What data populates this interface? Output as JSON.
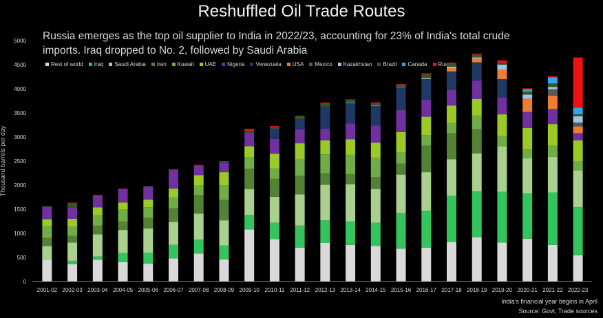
{
  "chart_data": {
    "type": "bar",
    "stacked": true,
    "title": "Reshuffled Oil Trade Routes",
    "subtitle": "Russia emerges as the top oil supplier to India in 2022/23, accounting for 23% of India's total crude imports.  Iraq dropped to  No. 2, followed by Saudi Arabia",
    "xlabel": "",
    "ylabel": "Thousand barrels per day",
    "ylim": [
      0,
      5000
    ],
    "yticks": [
      0,
      500,
      1000,
      1500,
      2000,
      2500,
      3000,
      3500,
      4000,
      4500,
      5000
    ],
    "grid": false,
    "legend_position": "top",
    "categories": [
      "2001-02",
      "2002-03",
      "2003-04",
      "2004-05",
      "2005-06",
      "2006-07",
      "2007-08",
      "2008-09",
      "2009-10",
      "2010-11",
      "2011-12",
      "2012-13",
      "2013-14",
      "2014-15",
      "2015-16",
      "2016-17",
      "2017-18",
      "2018-19",
      "2019-20",
      "2020-21",
      "2021-22",
      "2022-23"
    ],
    "series": [
      {
        "name": "Rest of world",
        "color": "#d9d9d9",
        "values": [
          460,
          360,
          450,
          400,
          370,
          480,
          580,
          460,
          1080,
          880,
          700,
          800,
          760,
          740,
          680,
          700,
          820,
          920,
          810,
          890,
          760,
          545
        ]
      },
      {
        "name": "Iraq",
        "color": "#33c45e",
        "values": [
          0,
          70,
          70,
          190,
          230,
          280,
          290,
          290,
          300,
          340,
          460,
          470,
          490,
          480,
          740,
          770,
          960,
          950,
          1050,
          940,
          1090,
          995
        ]
      },
      {
        "name": "Saudi Arabia",
        "color": "#a9d08e",
        "values": [
          275,
          380,
          460,
          480,
          500,
          480,
          540,
          520,
          540,
          540,
          650,
          740,
          770,
          700,
          800,
          800,
          760,
          790,
          940,
          730,
          740,
          760
        ]
      },
      {
        "name": "Iran",
        "color": "#548235",
        "values": [
          170,
          140,
          180,
          180,
          220,
          280,
          380,
          430,
          420,
          370,
          380,
          240,
          210,
          250,
          230,
          550,
          540,
          500,
          0,
          0,
          0,
          0
        ]
      },
      {
        "name": "Kuwait",
        "color": "#70ad47",
        "values": [
          240,
          190,
          220,
          240,
          220,
          230,
          200,
          300,
          240,
          220,
          360,
          390,
          400,
          400,
          230,
          220,
          210,
          280,
          220,
          180,
          230,
          200
        ]
      },
      {
        "name": "UAE",
        "color": "#9bc925",
        "values": [
          150,
          160,
          160,
          150,
          160,
          180,
          220,
          270,
          230,
          300,
          320,
          290,
          320,
          310,
          420,
          380,
          360,
          350,
          450,
          450,
          450,
          430
        ]
      },
      {
        "name": "Nigeria",
        "color": "#7030a0",
        "values": [
          240,
          230,
          240,
          280,
          270,
          390,
          200,
          200,
          280,
          310,
          290,
          240,
          330,
          360,
          460,
          350,
          330,
          380,
          350,
          330,
          310,
          150
        ]
      },
      {
        "name": "Venezuela",
        "color": "#203864",
        "values": [
          0,
          0,
          0,
          0,
          0,
          0,
          0,
          20,
          0,
          210,
          210,
          460,
          420,
          410,
          470,
          430,
          380,
          380,
          380,
          0,
          0,
          0
        ]
      },
      {
        "name": "USA",
        "color": "#ed7d31",
        "values": [
          0,
          0,
          0,
          0,
          0,
          0,
          0,
          0,
          0,
          0,
          0,
          0,
          0,
          0,
          0,
          0,
          70,
          80,
          200,
          280,
          280,
          140
        ]
      },
      {
        "name": "Mexico",
        "color": "#595959",
        "values": [
          25,
          0,
          0,
          0,
          0,
          0,
          0,
          0,
          0,
          0,
          0,
          0,
          0,
          0,
          0,
          0,
          0,
          0,
          0,
          0,
          130,
          80
        ]
      },
      {
        "name": "Kazakhstan",
        "color": "#9dc3e6",
        "values": [
          0,
          0,
          0,
          0,
          0,
          0,
          0,
          0,
          0,
          0,
          0,
          0,
          10,
          10,
          10,
          20,
          30,
          20,
          100,
          80,
          50,
          130
        ]
      },
      {
        "name": "Brazil",
        "color": "#375623",
        "values": [
          0,
          90,
          10,
          0,
          10,
          0,
          0,
          0,
          40,
          40,
          70,
          70,
          60,
          50,
          50,
          80,
          60,
          60,
          40,
          60,
          70,
          40
        ]
      },
      {
        "name": "Canada",
        "color": "#2ea8e8",
        "values": [
          0,
          0,
          0,
          0,
          0,
          0,
          0,
          0,
          0,
          0,
          0,
          0,
          0,
          0,
          0,
          0,
          0,
          0,
          0,
          50,
          130,
          140
        ]
      },
      {
        "name": "Russia",
        "color": "#ee1111",
        "values": [
          0,
          15,
          10,
          10,
          0,
          10,
          10,
          10,
          40,
          20,
          0,
          15,
          10,
          10,
          10,
          20,
          20,
          20,
          50,
          20,
          20,
          1040
        ]
      }
    ],
    "footnotes": [
      "India's financial year begins in April",
      "Source: Govt,  Trade sources"
    ]
  }
}
